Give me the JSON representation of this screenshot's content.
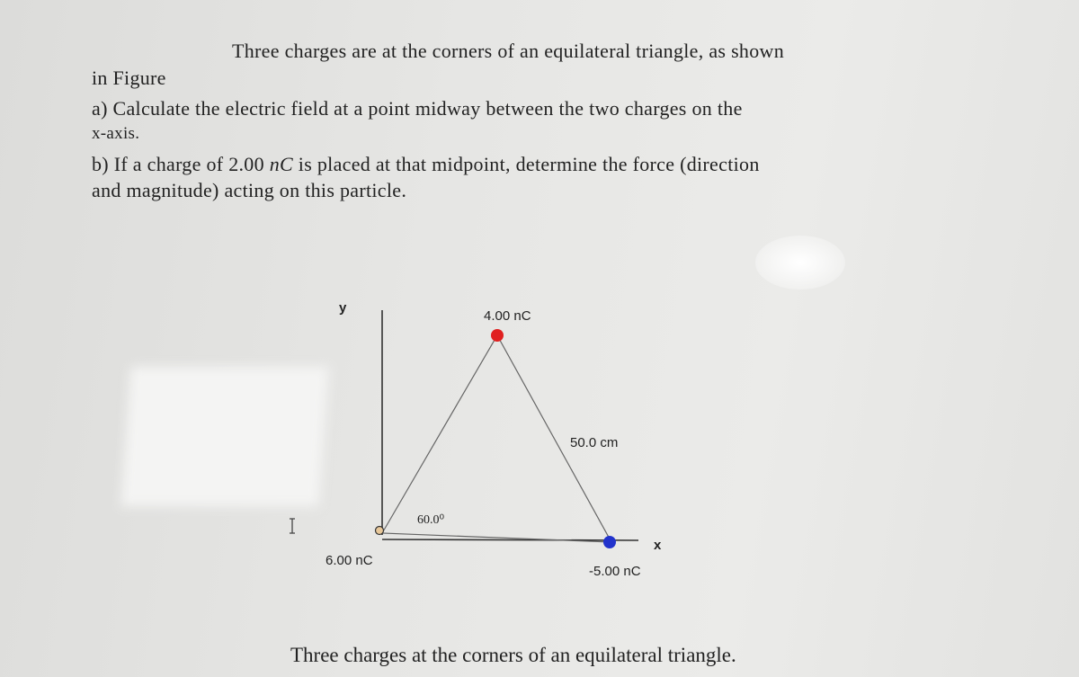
{
  "problem": {
    "lines": [
      "Three charges are at the corners of an equilateral triangle, as shown",
      "in Figure",
      "a) Calculate the electric field at a point midway between the two charges on the",
      "x-axis."
    ],
    "part_b": {
      "before": "b) If a charge of 2.00 ",
      "unit": "nC",
      "after": " is placed at that midpoint, determine the force (direction"
    },
    "last_line": "and magnitude) acting on this particle."
  },
  "figure": {
    "y_axis": "y",
    "x_axis": "x",
    "top_charge": "4.00 nC",
    "side_length": "50.0 cm",
    "angle": "60.0⁰",
    "origin_charge": "6.00 nC",
    "right_charge": "-5.00 nC",
    "caption": "Three charges at the corners of an equilateral triangle."
  }
}
